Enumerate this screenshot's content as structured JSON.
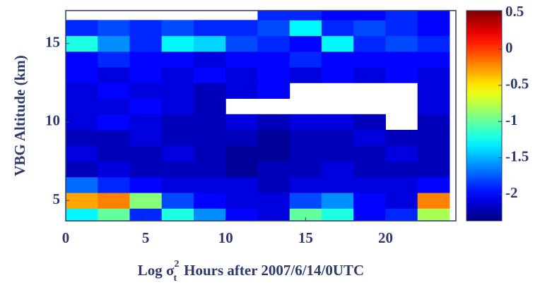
{
  "chart_data": {
    "type": "heatmap",
    "ylabel": "VBG Altitude (km)",
    "xlabel": {
      "quantity": "Log σ",
      "superscript": "2",
      "subscript": "t",
      "text": "Hours after 2007/6/14/0UTC"
    },
    "x": [
      1,
      3,
      5,
      7,
      9,
      11,
      13,
      15,
      17,
      19,
      21,
      23
    ],
    "y": [
      4,
      5,
      6,
      7,
      8,
      9,
      10,
      11,
      12,
      13,
      14,
      15,
      16,
      17
    ],
    "z": [
      [
        -1.3,
        -1.0,
        -1.9,
        -1.2,
        -1.6,
        -2.0,
        -2.1,
        -1.0,
        -1.2,
        -2.0,
        -1.9,
        -0.8
      ],
      [
        -0.3,
        -0.2,
        -0.9,
        -1.8,
        -2.0,
        -2.1,
        -2.1,
        -1.8,
        -1.6,
        -2.0,
        -2.1,
        -0.2
      ],
      [
        -1.7,
        -1.9,
        -2.0,
        -2.1,
        -2.1,
        -2.1,
        -2.2,
        -2.1,
        -2.1,
        -2.1,
        -2.1,
        -2.0
      ],
      [
        -2.2,
        -2.1,
        -2.2,
        -2.2,
        -2.2,
        -2.3,
        -2.2,
        -2.2,
        -2.1,
        -2.2,
        -2.2,
        -2.2
      ],
      [
        -2.1,
        -2.2,
        -2.2,
        -2.1,
        -2.2,
        -2.3,
        -2.3,
        -2.2,
        -2.2,
        -2.2,
        -2.1,
        -2.2
      ],
      [
        -2.2,
        -2.2,
        -2.1,
        -2.2,
        -2.2,
        -2.2,
        -2.3,
        -2.2,
        -2.2,
        -2.1,
        -2.2,
        -2.2
      ],
      [
        -2.1,
        -2.0,
        -2.1,
        -2.2,
        -2.2,
        -2.1,
        -2.2,
        -2.1,
        -2.1,
        -2.2,
        null,
        -2.2
      ],
      [
        -2.1,
        -2.1,
        -2.0,
        -2.1,
        -2.2,
        null,
        null,
        null,
        null,
        null,
        null,
        -2.1
      ],
      [
        -2.1,
        -2.0,
        -2.1,
        -2.1,
        -2.2,
        -2.1,
        -2.0,
        null,
        null,
        null,
        null,
        -2.1
      ],
      [
        -2.0,
        -2.1,
        -2.0,
        -2.1,
        -2.0,
        -2.1,
        -2.0,
        -2.1,
        -2.0,
        -2.1,
        -2.0,
        -2.1
      ],
      [
        -2.0,
        -1.9,
        -2.0,
        -2.0,
        -2.1,
        -2.0,
        -2.0,
        -1.9,
        -2.0,
        -2.0,
        -2.0,
        -2.0
      ],
      [
        -1.2,
        -1.6,
        -1.9,
        -1.3,
        -1.4,
        -1.8,
        -1.9,
        -2.0,
        -1.3,
        -1.9,
        -1.8,
        -1.9
      ],
      [
        -1.9,
        -1.8,
        -1.9,
        -1.8,
        -1.9,
        -1.9,
        -1.8,
        -1.3,
        -1.9,
        -1.8,
        -1.9,
        -2.0
      ],
      [
        null,
        null,
        null,
        null,
        null,
        null,
        -1.9,
        -1.9,
        -2.0,
        -2.0,
        -1.9,
        -2.0
      ]
    ],
    "xlim": [
      0,
      24.4
    ],
    "xticks": [
      0,
      5,
      10,
      15,
      20
    ],
    "ylim": [
      3.7,
      17.1
    ],
    "yticks": [
      5,
      10,
      15
    ],
    "zlim": [
      -2.37,
      0.53
    ],
    "zticks": [
      0.5,
      0,
      -0.5,
      -1,
      -1.5,
      -2
    ],
    "colormap": "jet"
  }
}
